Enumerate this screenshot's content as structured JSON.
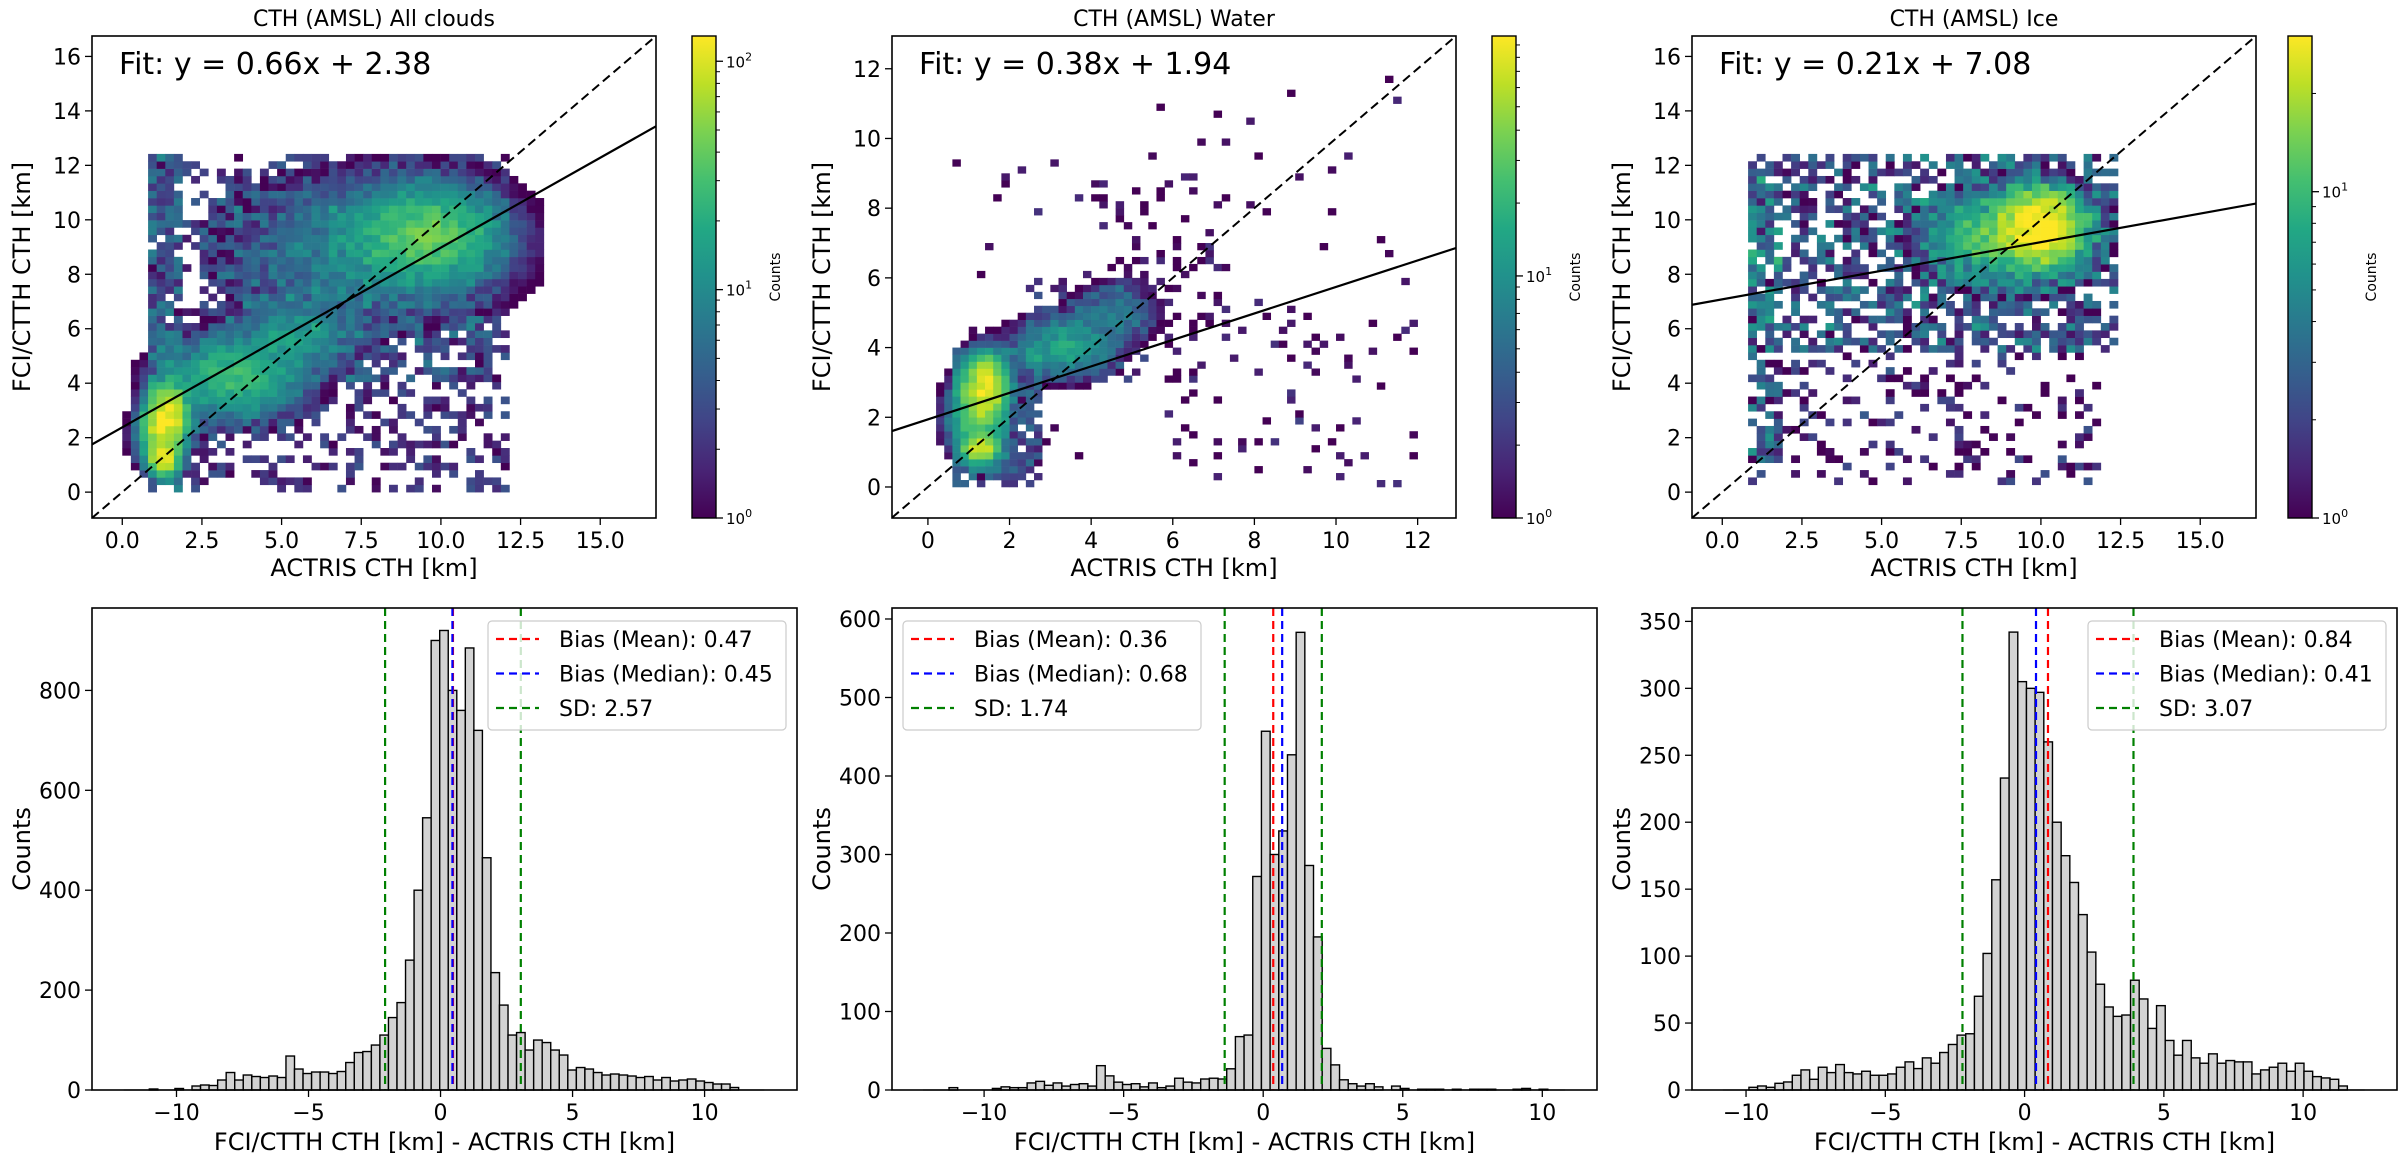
{
  "chart_data": [
    {
      "type": "heatmap",
      "title": "CTH (AMSL) All clouds",
      "xlabel": "ACTRIS CTH [km]",
      "ylabel": "FCI/CTTH CTH [km]",
      "xlim": [
        -0.95,
        16.75
      ],
      "ylim": [
        -0.95,
        16.75
      ],
      "xticks": [
        0,
        2.5,
        5,
        7.5,
        10,
        12.5,
        15
      ],
      "xtick_labels": [
        "0.0",
        "2.5",
        "5.0",
        "7.5",
        "10.0",
        "12.5",
        "15.0"
      ],
      "yticks": [
        0,
        2,
        4,
        6,
        8,
        10,
        12,
        14,
        16
      ],
      "ytick_labels": [
        "0",
        "2",
        "4",
        "6",
        "8",
        "10",
        "12",
        "14",
        "16"
      ],
      "fit": {
        "slope": 0.66,
        "intercept": 2.38,
        "label": "Fit: y = 0.66x + 2.38"
      },
      "identity_line": true,
      "bin_size": 0.27,
      "colorbar": {
        "label": "Counts",
        "scale": "log",
        "range": [
          1,
          129
        ],
        "ticks": [
          {
            "value": 1,
            "base": "10",
            "exp": "0"
          },
          {
            "value": 10,
            "base": "10",
            "exp": "1"
          },
          {
            "value": 100,
            "base": "10",
            "exp": "2"
          }
        ]
      },
      "density_components": [
        {
          "cx": 1.4,
          "cy": 2.8,
          "sx": 0.35,
          "sy": 0.6,
          "peak": 110
        },
        {
          "cx": 1.3,
          "cy": 1.2,
          "sx": 0.25,
          "sy": 0.3,
          "peak": 90
        },
        {
          "cx": 1.2,
          "cy": 2.0,
          "sx": 0.4,
          "sy": 0.6,
          "peak": 40
        },
        {
          "cx": 3.5,
          "cy": 4.2,
          "sx": 1.2,
          "sy": 0.8,
          "peak": 25
        },
        {
          "cx": 5.5,
          "cy": 5.8,
          "sx": 1.0,
          "sy": 0.7,
          "peak": 12
        },
        {
          "cx": 9.6,
          "cy": 9.5,
          "sx": 1.2,
          "sy": 0.9,
          "peak": 35
        },
        {
          "cx": 8.0,
          "cy": 9.0,
          "sx": 2.5,
          "sy": 1.5,
          "peak": 8
        }
      ],
      "background_regions": [
        {
          "x": [
            0.8,
            12.2
          ],
          "y": [
            0,
            12.3
          ],
          "level": 2,
          "fill": 0.45
        },
        {
          "x": [
            0.8,
            1.9
          ],
          "y": [
            0,
            12.3
          ],
          "level": 4,
          "fill": 0.8
        },
        {
          "x": [
            2.5,
            11.5
          ],
          "y": [
            4,
            11
          ],
          "level": 3,
          "fill": 0.35
        }
      ]
    },
    {
      "type": "heatmap",
      "title": "CTH (AMSL) Water",
      "xlabel": "ACTRIS CTH [km]",
      "ylabel": "FCI/CTTH CTH [km]",
      "xlim": [
        -0.88,
        12.94
      ],
      "ylim": [
        -0.89,
        12.94
      ],
      "xticks": [
        0,
        2,
        4,
        6,
        8,
        10,
        12
      ],
      "xtick_labels": [
        "0",
        "2",
        "4",
        "6",
        "8",
        "10",
        "12"
      ],
      "yticks": [
        0,
        2,
        4,
        6,
        8,
        10,
        12
      ],
      "ytick_labels": [
        "0",
        "2",
        "4",
        "6",
        "8",
        "10",
        "12"
      ],
      "fit": {
        "slope": 0.38,
        "intercept": 1.94,
        "label": "Fit: y = 0.38x + 1.94"
      },
      "identity_line": true,
      "bin_size": 0.2,
      "colorbar": {
        "label": "Counts",
        "scale": "log",
        "range": [
          1,
          98
        ],
        "ticks": [
          {
            "value": 1,
            "base": "10",
            "exp": "0"
          },
          {
            "value": 10,
            "base": "10",
            "exp": "1"
          }
        ]
      },
      "density_components": [
        {
          "cx": 1.4,
          "cy": 2.9,
          "sx": 0.3,
          "sy": 0.5,
          "peak": 80
        },
        {
          "cx": 1.3,
          "cy": 1.1,
          "sx": 0.25,
          "sy": 0.25,
          "peak": 60
        },
        {
          "cx": 1.2,
          "cy": 2.0,
          "sx": 0.4,
          "sy": 0.6,
          "peak": 25
        },
        {
          "cx": 3.3,
          "cy": 4.0,
          "sx": 0.7,
          "sy": 0.5,
          "peak": 14
        },
        {
          "cx": 4.6,
          "cy": 5.0,
          "sx": 0.6,
          "sy": 0.5,
          "peak": 6
        }
      ],
      "background_regions": [
        {
          "x": [
            0.6,
            2.7
          ],
          "y": [
            0,
            4
          ],
          "level": 3,
          "fill": 0.8
        },
        {
          "x": [
            2.5,
            5.5
          ],
          "y": [
            3,
            6
          ],
          "level": 1.5,
          "fill": 0.4
        },
        {
          "x": [
            4,
            7.5
          ],
          "y": [
            4,
            8.8
          ],
          "level": 1,
          "fill": 0.2
        },
        {
          "x": [
            0.6,
            12
          ],
          "y": [
            0,
            12
          ],
          "level": 1,
          "fill": 0.03
        },
        {
          "x": [
            6,
            12
          ],
          "y": [
            0,
            5
          ],
          "level": 1,
          "fill": 0.08
        }
      ]
    },
    {
      "type": "heatmap",
      "title": "CTH (AMSL) Ice",
      "xlabel": "ACTRIS CTH [km]",
      "ylabel": "FCI/CTTH CTH [km]",
      "xlim": [
        -0.95,
        16.75
      ],
      "ylim": [
        -0.95,
        16.75
      ],
      "xticks": [
        0,
        2.5,
        5,
        7.5,
        10,
        12.5,
        15
      ],
      "xtick_labels": [
        "0.0",
        "2.5",
        "5.0",
        "7.5",
        "10.0",
        "12.5",
        "15.0"
      ],
      "yticks": [
        0,
        2,
        4,
        6,
        8,
        10,
        12,
        14,
        16
      ],
      "ytick_labels": [
        "0",
        "2",
        "4",
        "6",
        "8",
        "10",
        "12",
        "14",
        "16"
      ],
      "fit": {
        "slope": 0.21,
        "intercept": 7.08,
        "label": "Fit: y = 0.21x + 7.08"
      },
      "identity_line": true,
      "bin_size": 0.27,
      "colorbar": {
        "label": "Counts",
        "scale": "log",
        "range": [
          1,
          30
        ],
        "ticks": [
          {
            "value": 1,
            "base": "10",
            "exp": "0"
          },
          {
            "value": 10,
            "base": "10",
            "exp": "1"
          }
        ]
      },
      "density_components": [
        {
          "cx": 10.0,
          "cy": 9.8,
          "sx": 0.8,
          "sy": 0.8,
          "peak": 28
        },
        {
          "cx": 8.8,
          "cy": 9.3,
          "sx": 1.5,
          "sy": 1.0,
          "peak": 10
        }
      ],
      "background_regions": [
        {
          "x": [
            0.8,
            12.4
          ],
          "y": [
            5,
            12.3
          ],
          "level": 2.5,
          "fill": 0.55
        },
        {
          "x": [
            0.8,
            12
          ],
          "y": [
            0.3,
            12.3
          ],
          "level": 1.3,
          "fill": 0.25
        },
        {
          "x": [
            0.8,
            1.8
          ],
          "y": [
            1,
            12
          ],
          "level": 3,
          "fill": 0.6
        }
      ]
    },
    {
      "type": "bar",
      "title": "",
      "xlabel": "FCI/CTTH CTH [km] - ACTRIS CTH [km]",
      "ylabel": "Counts",
      "xlim": [
        -13.2,
        13.5
      ],
      "ylim": [
        0,
        965
      ],
      "xticks": [
        -10,
        -5,
        0,
        5,
        10
      ],
      "xtick_labels": [
        "−10",
        "−5",
        "0",
        "5",
        "10"
      ],
      "yticks": [
        0,
        200,
        400,
        600,
        800
      ],
      "ytick_labels": [
        "0",
        "200",
        "400",
        "600",
        "800"
      ],
      "bin_range": [
        -12.0,
        12.26
      ],
      "values": [
        0,
        0,
        0,
        2,
        0,
        0,
        3,
        0,
        8,
        10,
        9,
        20,
        35,
        20,
        30,
        27,
        25,
        28,
        25,
        68,
        42,
        33,
        36,
        36,
        33,
        37,
        55,
        75,
        77,
        90,
        110,
        145,
        175,
        260,
        400,
        545,
        900,
        920,
        800,
        760,
        885,
        720,
        465,
        235,
        170,
        110,
        115,
        80,
        100,
        95,
        80,
        70,
        40,
        45,
        42,
        35,
        30,
        32,
        30,
        28,
        25,
        27,
        20,
        25,
        18,
        20,
        22,
        18,
        15,
        12,
        12,
        5,
        0,
        0,
        0
      ],
      "legend_position": "top-right",
      "reference_lines": [
        {
          "label": "Bias (Mean): 0.47",
          "values": [
            0.47
          ],
          "color": "#ff0000"
        },
        {
          "label": "Bias (Median): 0.45",
          "values": [
            0.45
          ],
          "color": "#0000ff"
        },
        {
          "label": "SD: 2.57",
          "values": [
            -2.1,
            3.04
          ],
          "color": "#008000"
        }
      ]
    },
    {
      "type": "bar",
      "title": "",
      "xlabel": "FCI/CTTH CTH [km] - ACTRIS CTH [km]",
      "ylabel": "Counts",
      "xlim": [
        -13.3,
        11.96
      ],
      "ylim": [
        0,
        614
      ],
      "xticks": [
        -10,
        -5,
        0,
        5,
        10
      ],
      "xtick_labels": [
        "−10",
        "−5",
        "0",
        "5",
        "10"
      ],
      "yticks": [
        0,
        100,
        200,
        300,
        400,
        500,
        600
      ],
      "ytick_labels": [
        "0",
        "100",
        "200",
        "300",
        "400",
        "500",
        "600"
      ],
      "bin_range": [
        -12.19,
        10.82
      ],
      "values": [
        0,
        0,
        0,
        3,
        0,
        0,
        0,
        0,
        2,
        4,
        3,
        3,
        9,
        11,
        6,
        9,
        5,
        7,
        8,
        5,
        31,
        18,
        10,
        7,
        8,
        4,
        9,
        3,
        5,
        15,
        10,
        9,
        14,
        15,
        14,
        27,
        68,
        70,
        272,
        457,
        300,
        330,
        427,
        583,
        286,
        195,
        53,
        32,
        13,
        8,
        5,
        8,
        4,
        0,
        5,
        2,
        0,
        1,
        1,
        1,
        0,
        1,
        0,
        1,
        1,
        1,
        0,
        0,
        1,
        2,
        0,
        1,
        0,
        0
      ],
      "legend_position": "top-left",
      "reference_lines": [
        {
          "label": "Bias (Mean): 0.36",
          "values": [
            0.36
          ],
          "color": "#ff0000"
        },
        {
          "label": "Bias (Median): 0.68",
          "values": [
            0.68
          ],
          "color": "#0000ff"
        },
        {
          "label": "SD: 1.74",
          "values": [
            -1.38,
            2.1
          ],
          "color": "#008000"
        }
      ]
    },
    {
      "type": "bar",
      "title": "",
      "xlabel": "FCI/CTTH CTH [km] - ACTRIS CTH [km]",
      "ylabel": "Counts",
      "xlim": [
        -11.94,
        13.37
      ],
      "ylim": [
        0,
        360
      ],
      "xticks": [
        -10,
        -5,
        0,
        5,
        10
      ],
      "xtick_labels": [
        "−10",
        "−5",
        "0",
        "5",
        "10"
      ],
      "yticks": [
        0,
        50,
        100,
        150,
        200,
        250,
        300,
        350
      ],
      "ytick_labels": [
        "0",
        "50",
        "100",
        "150",
        "200",
        "250",
        "300",
        "350"
      ],
      "bin_range": [
        -10.83,
        12.21
      ],
      "values": [
        0,
        0,
        0,
        2,
        3,
        2,
        5,
        6,
        11,
        15,
        8,
        17,
        13,
        19,
        13,
        12,
        14,
        11,
        11,
        12,
        17,
        21,
        16,
        24,
        20,
        28,
        34,
        41,
        42,
        70,
        102,
        157,
        233,
        342,
        305,
        300,
        297,
        260,
        200,
        175,
        155,
        131,
        103,
        79,
        62,
        55,
        56,
        82,
        68,
        46,
        63,
        37,
        26,
        37,
        24,
        20,
        27,
        20,
        22,
        21,
        21,
        12,
        15,
        17,
        20,
        14,
        20,
        14,
        10,
        9,
        8,
        3,
        0,
        0
      ],
      "legend_position": "top-right",
      "reference_lines": [
        {
          "label": "Bias (Mean): 0.84",
          "values": [
            0.84
          ],
          "color": "#ff0000"
        },
        {
          "label": "Bias (Median): 0.41",
          "values": [
            0.41
          ],
          "color": "#0000ff"
        },
        {
          "label": "SD: 3.07",
          "values": [
            -2.23,
            3.91
          ],
          "color": "#008000"
        }
      ]
    }
  ],
  "colors": {
    "bar_fill": "#d3d3d3",
    "bar_edge": "#000000",
    "line": "#000000"
  }
}
